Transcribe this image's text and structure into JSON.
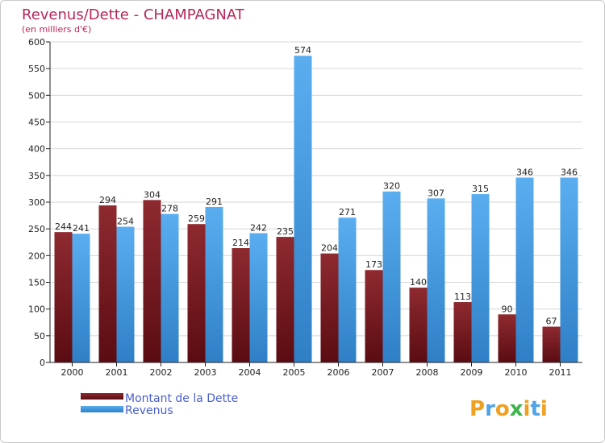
{
  "chart_data": {
    "type": "bar",
    "title": "Revenus/Dette - CHAMPAGNAT",
    "subtitle": "(en milliers d'€)",
    "categories": [
      "2000",
      "2001",
      "2002",
      "2003",
      "2004",
      "2005",
      "2006",
      "2007",
      "2008",
      "2009",
      "2010",
      "2011"
    ],
    "series": [
      {
        "name": "Montant de la Dette",
        "color": "#7a1a22",
        "values": [
          244,
          294,
          304,
          259,
          214,
          235,
          204,
          173,
          140,
          113,
          90,
          67
        ]
      },
      {
        "name": "Revenus",
        "color": "#4fa3e6",
        "values": [
          241,
          254,
          278,
          291,
          242,
          574,
          271,
          320,
          307,
          315,
          346,
          346
        ]
      }
    ],
    "yticks": [
      "0",
      "50",
      "100",
      "150",
      "200",
      "250",
      "300",
      "350",
      "400",
      "450",
      "500",
      "550",
      "600"
    ],
    "ylim": [
      0,
      600
    ],
    "grid": true,
    "legend": "bottom-left"
  },
  "branding": {
    "logo_letters": [
      "P",
      "r",
      "o",
      "x",
      "i",
      "t",
      "i"
    ],
    "logo_colors": [
      "#f0a020",
      "#4fa3e6",
      "#f0a020",
      "#3cb44a",
      "#f0a020",
      "#4fa3e6",
      "#f0a020"
    ]
  }
}
